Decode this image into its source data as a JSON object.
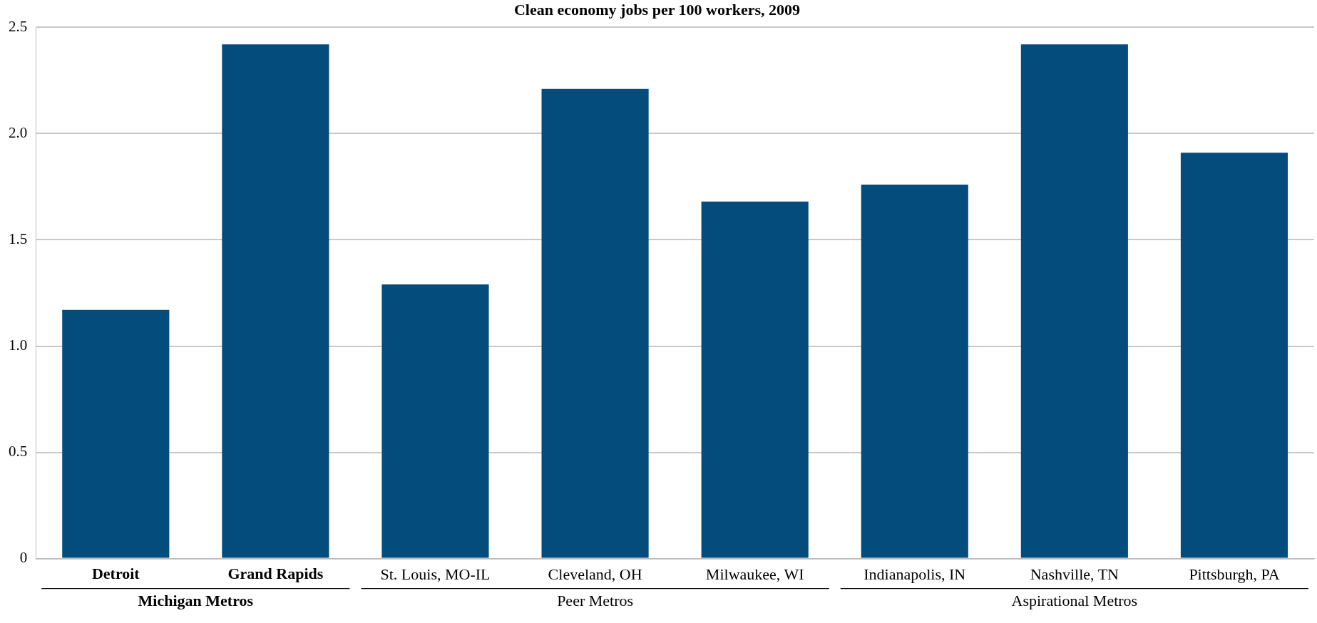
{
  "chart_data": {
    "type": "bar",
    "title": "Clean economy jobs per 100 workers, 2009",
    "categories": [
      "Detroit",
      "Grand Rapids",
      "St. Louis, MO-IL",
      "Cleveland, OH",
      "Milwaukee, WI",
      "Indianapolis, IN",
      "Nashville, TN",
      "Pittsburgh, PA"
    ],
    "values": [
      1.17,
      2.42,
      1.29,
      2.21,
      1.68,
      1.76,
      2.42,
      1.91
    ],
    "color": "#044c7c",
    "ylim": [
      0,
      2.5
    ],
    "yticks": [
      0,
      0.5,
      {
        "value": 1,
        "label": "1.0"
      },
      1.5,
      {
        "value": 2,
        "label": "2.0"
      },
      2.5
    ],
    "grid": "y",
    "annotations": [
      "Michigan Metros",
      "Peer Metros",
      "Aspirational Metros"
    ]
  }
}
